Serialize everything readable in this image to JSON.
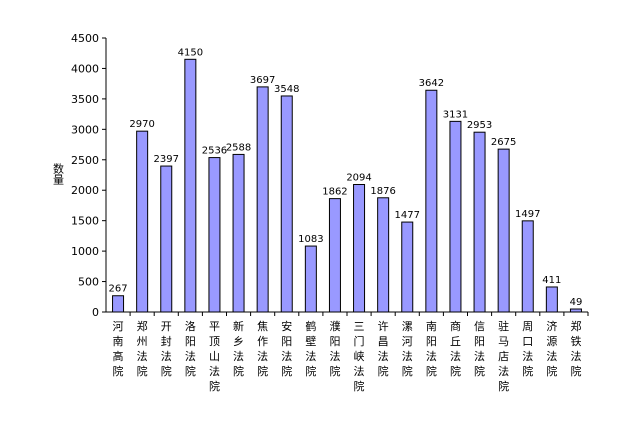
{
  "chart_data": {
    "type": "bar",
    "ylabel": "数量",
    "ylim": [
      0,
      4500
    ],
    "ytick_step": 500,
    "grid": false,
    "legend": "none",
    "bar_color": "#9999ff",
    "bar_stroke": "#000000",
    "categories": [
      "河南高院",
      "郑州法院",
      "开封法院",
      "洛阳法院",
      "平顶山法院",
      "新乡法院",
      "焦作法院",
      "安阳法院",
      "鹤壁法院",
      "濮阳法院",
      "三门峡法院",
      "许昌法院",
      "漯河法院",
      "南阳法院",
      "商丘法院",
      "信阳法院",
      "驻马店法院",
      "周口法院",
      "济源法院",
      "郑铁法院"
    ],
    "values": [
      267,
      2970,
      2397,
      4150,
      2536,
      2588,
      3697,
      3548,
      1083,
      1862,
      2094,
      1876,
      1477,
      3642,
      3131,
      2953,
      2675,
      1497,
      411,
      49
    ]
  }
}
